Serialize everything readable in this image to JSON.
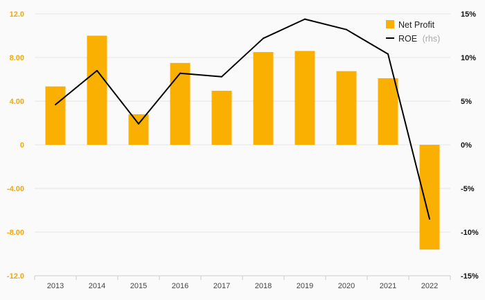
{
  "chart_data": {
    "type": "bar",
    "categories": [
      "2013",
      "2014",
      "2015",
      "2016",
      "2017",
      "2018",
      "2019",
      "2020",
      "2021",
      "2022"
    ],
    "series": [
      {
        "name": "Net Profit",
        "type": "bar",
        "axis": "left",
        "color": "#f9b000",
        "values": [
          5.35,
          10.0,
          2.8,
          7.5,
          4.95,
          8.5,
          8.6,
          6.75,
          6.1,
          -9.6
        ]
      },
      {
        "name": "ROE",
        "type": "line",
        "axis": "right",
        "color": "#000000",
        "values": [
          4.6,
          8.5,
          2.4,
          8.2,
          7.8,
          12.2,
          14.4,
          13.2,
          10.4,
          -8.5
        ]
      }
    ],
    "y_left": {
      "range": [
        -12,
        12
      ],
      "ticks": [
        12,
        8,
        4,
        0,
        -4,
        -8,
        -12
      ],
      "tick_labels": [
        "12.0",
        "8.00",
        "4.00",
        "0",
        "-4.00",
        "-8.00",
        "-12.0"
      ],
      "color": "#f5a800"
    },
    "y_right": {
      "range": [
        -15,
        15
      ],
      "ticks": [
        15,
        10,
        5,
        0,
        -5,
        -10,
        -15
      ],
      "tick_labels": [
        "15%",
        "10%",
        "5%",
        "0%",
        "-5%",
        "-10%",
        "-15%"
      ]
    },
    "legend": {
      "position": "top-right",
      "items": [
        {
          "label": "Net Profit",
          "note": ""
        },
        {
          "label": "ROE",
          "note": "(rhs)"
        }
      ]
    },
    "grid": true
  }
}
